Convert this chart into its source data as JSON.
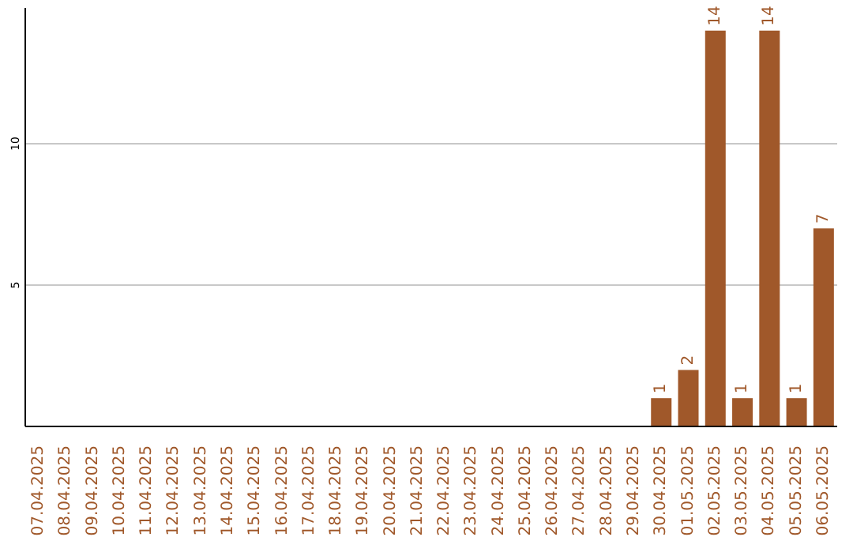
{
  "chart_data": {
    "type": "bar",
    "categories": [
      "07.04.2025",
      "08.04.2025",
      "09.04.2025",
      "10.04.2025",
      "11.04.2025",
      "12.04.2025",
      "13.04.2025",
      "14.04.2025",
      "15.04.2025",
      "16.04.2025",
      "17.04.2025",
      "18.04.2025",
      "19.04.2025",
      "20.04.2025",
      "21.04.2025",
      "22.04.2025",
      "23.04.2025",
      "24.04.2025",
      "25.04.2025",
      "26.04.2025",
      "27.04.2025",
      "28.04.2025",
      "29.04.2025",
      "30.04.2025",
      "01.05.2025",
      "02.05.2025",
      "03.05.2025",
      "04.05.2025",
      "05.05.2025",
      "06.05.2025"
    ],
    "values": [
      0,
      0,
      0,
      0,
      0,
      0,
      0,
      0,
      0,
      0,
      0,
      0,
      0,
      0,
      0,
      0,
      0,
      0,
      0,
      0,
      0,
      0,
      0,
      1,
      2,
      14,
      1,
      14,
      1,
      7
    ],
    "value_labels": [
      null,
      null,
      null,
      null,
      null,
      null,
      null,
      null,
      null,
      null,
      null,
      null,
      null,
      null,
      null,
      null,
      null,
      null,
      null,
      null,
      null,
      null,
      null,
      "1",
      "2",
      "14",
      "1",
      "14",
      "1",
      "7"
    ],
    "color": "#a0582a",
    "ylim": [
      0,
      14.8
    ],
    "yticks": [
      5,
      10
    ],
    "grid": "y"
  }
}
